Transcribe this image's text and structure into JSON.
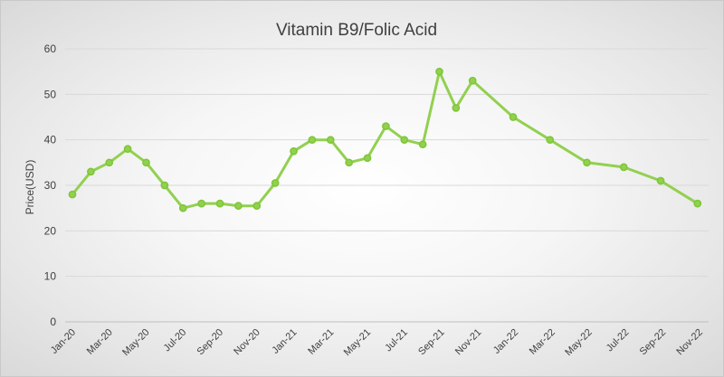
{
  "chart_data": {
    "type": "line",
    "title": "Vitamin B9/Folic Acid",
    "xlabel": "",
    "ylabel": "Price(USD)",
    "ylim": [
      0,
      60
    ],
    "yticks": [
      0,
      10,
      20,
      30,
      40,
      50,
      60
    ],
    "grid": true,
    "legend": "none",
    "x_range_months": [
      0,
      34.5
    ],
    "tick_labels": [
      {
        "label": "Jan-20",
        "m": 0
      },
      {
        "label": "Mar-20",
        "m": 2
      },
      {
        "label": "May-20",
        "m": 4
      },
      {
        "label": "Jul-20",
        "m": 6
      },
      {
        "label": "Sep-20",
        "m": 8
      },
      {
        "label": "Nov-20",
        "m": 10
      },
      {
        "label": "Jan-21",
        "m": 12
      },
      {
        "label": "Mar-21",
        "m": 14
      },
      {
        "label": "May-21",
        "m": 16
      },
      {
        "label": "Jul-21",
        "m": 18
      },
      {
        "label": "Sep-21",
        "m": 20
      },
      {
        "label": "Nov-21",
        "m": 22
      },
      {
        "label": "Jan-22",
        "m": 24
      },
      {
        "label": "Mar-22",
        "m": 26
      },
      {
        "label": "May-22",
        "m": 28
      },
      {
        "label": "Jul-22",
        "m": 30
      },
      {
        "label": "Sep-22",
        "m": 32
      },
      {
        "label": "Nov-22",
        "m": 34
      }
    ],
    "series": [
      {
        "name": "Vitamin B9/Folic Acid",
        "color": "#92d050",
        "marker_color": "#7ec636",
        "points": [
          {
            "m": 0.0,
            "y": 28
          },
          {
            "m": 1.0,
            "y": 33
          },
          {
            "m": 2.0,
            "y": 35
          },
          {
            "m": 3.0,
            "y": 38
          },
          {
            "m": 4.0,
            "y": 35
          },
          {
            "m": 5.0,
            "y": 30
          },
          {
            "m": 6.0,
            "y": 25
          },
          {
            "m": 7.0,
            "y": 26
          },
          {
            "m": 8.0,
            "y": 26
          },
          {
            "m": 9.0,
            "y": 25.5
          },
          {
            "m": 10.0,
            "y": 25.5
          },
          {
            "m": 11.0,
            "y": 30.5
          },
          {
            "m": 12.0,
            "y": 37.5
          },
          {
            "m": 13.0,
            "y": 40
          },
          {
            "m": 14.0,
            "y": 40
          },
          {
            "m": 15.0,
            "y": 35
          },
          {
            "m": 16.0,
            "y": 36
          },
          {
            "m": 17.0,
            "y": 43
          },
          {
            "m": 18.0,
            "y": 40
          },
          {
            "m": 19.0,
            "y": 39
          },
          {
            "m": 19.9,
            "y": 55
          },
          {
            "m": 20.8,
            "y": 47
          },
          {
            "m": 21.7,
            "y": 53
          },
          {
            "m": 23.9,
            "y": 45
          },
          {
            "m": 25.9,
            "y": 40
          },
          {
            "m": 27.9,
            "y": 35
          },
          {
            "m": 29.9,
            "y": 34
          },
          {
            "m": 31.9,
            "y": 31
          },
          {
            "m": 33.9,
            "y": 26
          }
        ]
      }
    ]
  }
}
